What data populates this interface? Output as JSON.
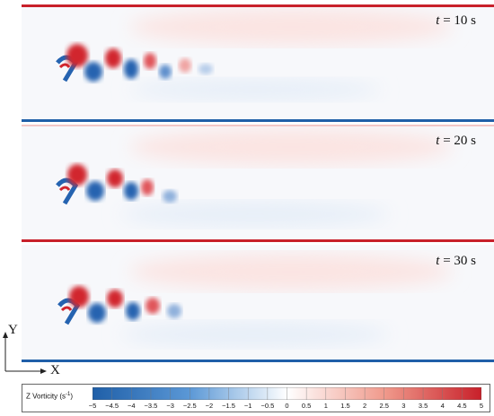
{
  "panels": [
    {
      "label": "t = 10 s",
      "t_var": "t",
      "t_value": "= 10 s"
    },
    {
      "label": "t = 20 s",
      "t_var": "t",
      "t_value": "= 20 s"
    },
    {
      "label": "t = 30 s",
      "t_var": "t",
      "t_value": "= 30 s"
    }
  ],
  "axes": {
    "x_label": "X",
    "y_label": "Y"
  },
  "colorbar": {
    "title": "Z Vorticity (s",
    "title_sup": "-1",
    "title_end": ")",
    "min": -5,
    "max": 5,
    "ticks": [
      "−5",
      "−4.5",
      "−4",
      "−3.5",
      "−3",
      "−2.5",
      "−2",
      "−1.5",
      "−1",
      "−0.5",
      "0",
      "0.5",
      "1",
      "1.5",
      "2",
      "2.5",
      "3",
      "3.5",
      "4",
      "4.5",
      "5"
    ],
    "color_negative": "#1f5fa8",
    "color_zero": "#ffffff",
    "color_positive": "#c8202a"
  }
}
